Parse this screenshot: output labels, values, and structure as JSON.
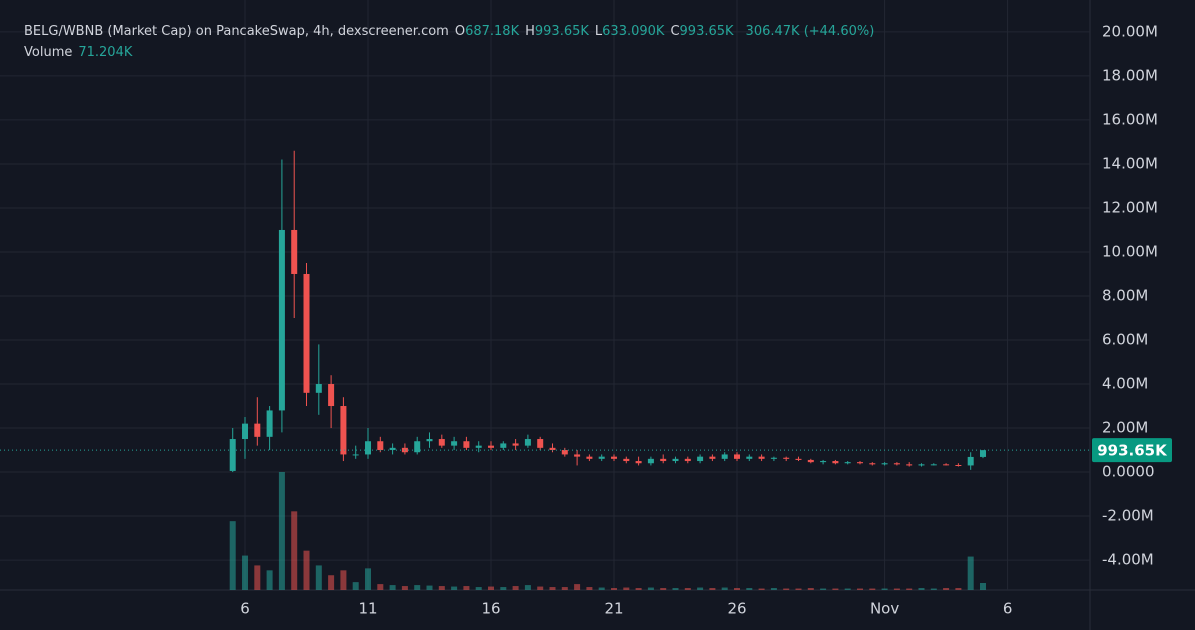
{
  "header": {
    "title": "BELG/WBNB (Market Cap) on PancakeSwap, 4h, dexscreener.com",
    "ohlc": [
      {
        "key": "O",
        "value": "687.18K"
      },
      {
        "key": "H",
        "value": "993.65K"
      },
      {
        "key": "L",
        "value": "633.090K"
      },
      {
        "key": "C",
        "value": "993.65K"
      }
    ],
    "change": "306.47K (+44.60%)",
    "volume_label": "Volume",
    "volume_value": "71.204K"
  },
  "chart_data": {
    "type": "candlestick",
    "x": [
      5.5,
      6,
      6.5,
      7,
      7.5,
      8,
      8.5,
      9,
      9.5,
      10,
      10.5,
      11,
      11.5,
      12,
      12.5,
      13,
      13.5,
      14,
      14.5,
      15,
      15.5,
      16,
      16.5,
      17,
      17.5,
      18,
      18.5,
      19,
      19.5,
      20,
      20.5,
      21,
      21.5,
      22,
      22.5,
      23,
      23.5,
      24,
      24.5,
      25,
      25.5,
      26,
      26.5,
      27,
      27.5,
      28,
      28.5,
      29,
      29.5,
      30,
      30.5,
      31,
      31.5,
      32,
      32.5,
      33,
      33.5,
      34,
      34.5,
      35,
      35.5,
      36
    ],
    "open": [
      0.05,
      1.5,
      2.2,
      1.6,
      2.8,
      11,
      9,
      3.6,
      4,
      3,
      0.8,
      0.8,
      1.4,
      1,
      1.1,
      0.9,
      1.4,
      1.5,
      1.2,
      1.4,
      1.1,
      1.2,
      1.1,
      1.3,
      1.2,
      1.5,
      1.1,
      1,
      0.8,
      0.7,
      0.6,
      0.7,
      0.6,
      0.5,
      0.4,
      0.6,
      0.5,
      0.6,
      0.5,
      0.7,
      0.6,
      0.8,
      0.6,
      0.7,
      0.6,
      0.65,
      0.6,
      0.55,
      0.45,
      0.5,
      0.4,
      0.45,
      0.4,
      0.35,
      0.4,
      0.35,
      0.3,
      0.35,
      0.35,
      0.32,
      0.3,
      0.687
    ],
    "high": [
      2,
      2.5,
      3.4,
      3,
      14.2,
      14.6,
      9.5,
      5.8,
      4.4,
      3.4,
      1.2,
      2,
      1.6,
      1.3,
      1.3,
      1.6,
      1.8,
      1.7,
      1.6,
      1.6,
      1.4,
      1.4,
      1.4,
      1.5,
      1.7,
      1.6,
      1.3,
      1.1,
      1,
      0.8,
      0.8,
      0.8,
      0.7,
      0.7,
      0.7,
      0.8,
      0.7,
      0.7,
      0.8,
      0.8,
      0.9,
      0.9,
      0.8,
      0.8,
      0.7,
      0.7,
      0.7,
      0.6,
      0.55,
      0.55,
      0.5,
      0.5,
      0.45,
      0.45,
      0.45,
      0.45,
      0.4,
      0.4,
      0.4,
      0.4,
      0.9,
      0.994
    ],
    "low": [
      0,
      0.6,
      1.2,
      1,
      1.8,
      7,
      3,
      2.6,
      2,
      0.5,
      0.6,
      0.6,
      0.9,
      0.8,
      0.8,
      0.8,
      1.1,
      1.1,
      1,
      1,
      0.9,
      1,
      1,
      1,
      1.1,
      1,
      0.9,
      0.7,
      0.3,
      0.5,
      0.5,
      0.5,
      0.4,
      0.3,
      0.3,
      0.4,
      0.4,
      0.4,
      0.4,
      0.5,
      0.5,
      0.5,
      0.5,
      0.5,
      0.5,
      0.5,
      0.5,
      0.4,
      0.35,
      0.35,
      0.35,
      0.35,
      0.3,
      0.3,
      0.3,
      0.25,
      0.25,
      0.3,
      0.3,
      0.25,
      0.1,
      0.633
    ],
    "close": [
      1.5,
      2.2,
      1.6,
      2.8,
      11,
      9,
      3.6,
      4,
      3,
      0.8,
      0.8,
      1.4,
      1,
      1.1,
      0.9,
      1.4,
      1.5,
      1.2,
      1.4,
      1.1,
      1.2,
      1.1,
      1.3,
      1.2,
      1.5,
      1.1,
      1,
      0.8,
      0.7,
      0.6,
      0.7,
      0.6,
      0.5,
      0.4,
      0.6,
      0.5,
      0.6,
      0.5,
      0.7,
      0.6,
      0.8,
      0.6,
      0.7,
      0.6,
      0.65,
      0.6,
      0.55,
      0.45,
      0.5,
      0.4,
      0.45,
      0.4,
      0.35,
      0.4,
      0.35,
      0.3,
      0.35,
      0.35,
      0.32,
      0.3,
      0.687,
      0.994
    ],
    "volume": {
      "axis": "y2",
      "values": [
        700,
        350,
        250,
        200,
        1200,
        800,
        400,
        250,
        150,
        200,
        80,
        220,
        60,
        50,
        40,
        50,
        45,
        40,
        35,
        40,
        30,
        35,
        30,
        40,
        50,
        35,
        30,
        30,
        60,
        30,
        25,
        20,
        25,
        20,
        25,
        20,
        20,
        20,
        25,
        20,
        25,
        20,
        20,
        15,
        20,
        15,
        15,
        20,
        15,
        15,
        15,
        15,
        15,
        15,
        15,
        15,
        20,
        15,
        20,
        20,
        340,
        71.204
      ]
    },
    "xlim": [
      -3.96,
      40.35
    ],
    "xticks": [
      6,
      11,
      16,
      21,
      26,
      {
        "value": 32,
        "label": "Nov"
      },
      {
        "value": 37,
        "label": "6"
      }
    ],
    "ylim": [
      -5.36,
      21.45
    ],
    "yticks": [
      {
        "value": 20,
        "label": "20.00M"
      },
      {
        "value": 18,
        "label": "18.00M"
      },
      {
        "value": 16,
        "label": "16.00M"
      },
      {
        "value": 14,
        "label": "14.00M"
      },
      {
        "value": 12,
        "label": "12.00M"
      },
      {
        "value": 10,
        "label": "10.00M"
      },
      {
        "value": 8,
        "label": "8.00M"
      },
      {
        "value": 6,
        "label": "6.00M"
      },
      {
        "value": 4,
        "label": "4.00M"
      },
      {
        "value": 2,
        "label": "2.00M"
      },
      {
        "value": 0,
        "label": "0.0000"
      },
      {
        "value": -2,
        "label": "-2.00M"
      },
      {
        "value": -4,
        "label": "-4.00M"
      }
    ],
    "y2lim": [
      0,
      6000
    ],
    "last_price": {
      "value": 0.99365,
      "label": "993.65K"
    },
    "colors": {
      "up": "#26a69a",
      "down": "#ef5350"
    },
    "grid": true
  }
}
